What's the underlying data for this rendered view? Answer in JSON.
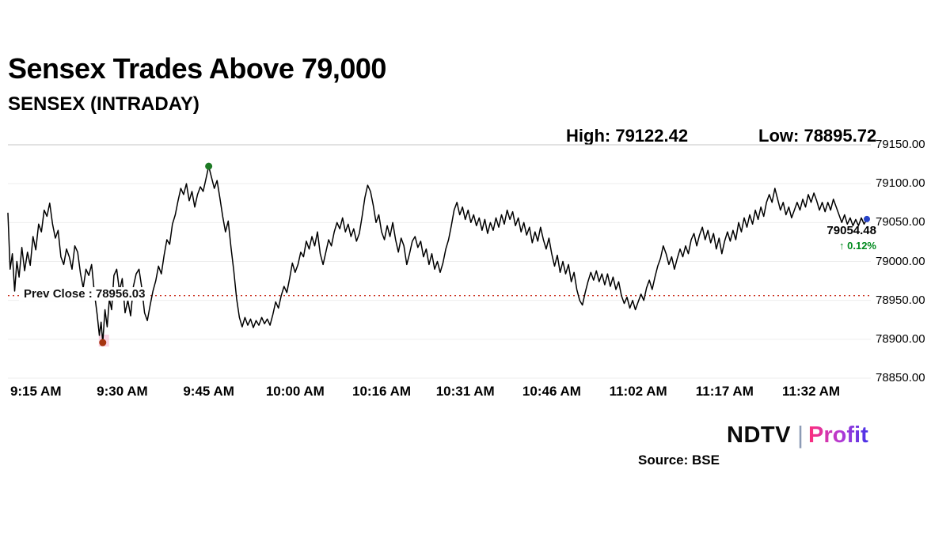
{
  "header": {
    "title": "Sensex Trades Above 79,000",
    "subtitle": "SENSEX (INTRADAY)",
    "high_label": "High:",
    "high_value": "79122.42",
    "low_label": "Low:",
    "low_value": "78895.72"
  },
  "footer": {
    "source": "Source: BSE",
    "logo_ndtv": "NDTV",
    "logo_sep": "|",
    "logo_profit": "Profit"
  },
  "chart_data": {
    "type": "line",
    "title": "SENSEX (INTRADAY)",
    "xlabel": "",
    "ylabel": "",
    "ylim": [
      78850,
      79150
    ],
    "t_range": [
      0,
      154
    ],
    "grid": "horizontal-light",
    "legend": "none",
    "y_ticks": [
      {
        "value": 79150,
        "label": "79150.00"
      },
      {
        "value": 79100,
        "label": "79100.00"
      },
      {
        "value": 79050,
        "label": "79050.00"
      },
      {
        "value": 79000,
        "label": "79000.00"
      },
      {
        "value": 78950,
        "label": "78950.00"
      },
      {
        "value": 78900,
        "label": "78900.00"
      },
      {
        "value": 78850,
        "label": "78850.00"
      }
    ],
    "x_ticks": [
      {
        "t": 5,
        "label": "9:15 AM"
      },
      {
        "t": 20.5,
        "label": "9:30 AM"
      },
      {
        "t": 36,
        "label": "9:45 AM"
      },
      {
        "t": 51.5,
        "label": "10:00 AM"
      },
      {
        "t": 67,
        "label": "10:16 AM"
      },
      {
        "t": 82,
        "label": "10:31 AM"
      },
      {
        "t": 97.5,
        "label": "10:46 AM"
      },
      {
        "t": 113,
        "label": "11:02 AM"
      },
      {
        "t": 128.5,
        "label": "11:17 AM"
      },
      {
        "t": 144,
        "label": "11:32 AM"
      }
    ],
    "prev_close": {
      "value": 78956.03,
      "text": "Prev Close : 78956.03"
    },
    "high": {
      "t": 36,
      "value": 79122.42
    },
    "low": {
      "t": 17,
      "value": 78895.72
    },
    "last": {
      "t": 154,
      "value": 79054.48,
      "price_label": "79054.48",
      "change_label": "↑ 0.12%"
    },
    "colors": {
      "line": "#000000",
      "prev_close_line": "#cc3322",
      "high_dot": "#1d7a24",
      "low_dot": "#a63510",
      "low_halo": "#f6bcd4",
      "last_dot": "#2743c7",
      "change_text": "#008a1e",
      "grid_top": "#c4c4c4",
      "grid": "#ededed"
    },
    "points": [
      [
        0,
        79062
      ],
      [
        0.4,
        78990
      ],
      [
        0.8,
        79010
      ],
      [
        1.2,
        78962
      ],
      [
        1.6,
        79000
      ],
      [
        2,
        78980
      ],
      [
        2.5,
        79018
      ],
      [
        3,
        78988
      ],
      [
        3.5,
        79012
      ],
      [
        4,
        78995
      ],
      [
        4.5,
        79032
      ],
      [
        5,
        79015
      ],
      [
        5.5,
        79048
      ],
      [
        6,
        79038
      ],
      [
        6.5,
        79066
      ],
      [
        7,
        79058
      ],
      [
        7.5,
        79075
      ],
      [
        8,
        79048
      ],
      [
        8.5,
        79030
      ],
      [
        9,
        79040
      ],
      [
        9.5,
        79006
      ],
      [
        10,
        78996
      ],
      [
        10.5,
        79016
      ],
      [
        11,
        79006
      ],
      [
        11.5,
        78990
      ],
      [
        12,
        79020
      ],
      [
        12.5,
        79012
      ],
      [
        13,
        78985
      ],
      [
        13.5,
        78966
      ],
      [
        14,
        78990
      ],
      [
        14.5,
        78982
      ],
      [
        15,
        78996
      ],
      [
        15.5,
        78960
      ],
      [
        16,
        78932
      ],
      [
        16.4,
        78905
      ],
      [
        16.7,
        78922
      ],
      [
        17,
        78895.72
      ],
      [
        17.4,
        78938
      ],
      [
        17.8,
        78916
      ],
      [
        18.2,
        78952
      ],
      [
        18.6,
        78938
      ],
      [
        19,
        78982
      ],
      [
        19.5,
        78990
      ],
      [
        20,
        78962
      ],
      [
        20.5,
        78978
      ],
      [
        21,
        78934
      ],
      [
        21.5,
        78950
      ],
      [
        22,
        78930
      ],
      [
        22.5,
        78968
      ],
      [
        23,
        78984
      ],
      [
        23.5,
        78990
      ],
      [
        24,
        78966
      ],
      [
        24.5,
        78934
      ],
      [
        25,
        78924
      ],
      [
        25.5,
        78944
      ],
      [
        26,
        78962
      ],
      [
        26.5,
        78975
      ],
      [
        27,
        78994
      ],
      [
        27.5,
        78984
      ],
      [
        28,
        79008
      ],
      [
        28.5,
        79028
      ],
      [
        29,
        79022
      ],
      [
        29.5,
        79048
      ],
      [
        30,
        79060
      ],
      [
        30.5,
        79078
      ],
      [
        31,
        79094
      ],
      [
        31.5,
        79086
      ],
      [
        32,
        79100
      ],
      [
        32.5,
        79078
      ],
      [
        33,
        79090
      ],
      [
        33.5,
        79070
      ],
      [
        34,
        79086
      ],
      [
        34.5,
        79096
      ],
      [
        35,
        79090
      ],
      [
        35.5,
        79106
      ],
      [
        36,
        79122.42
      ],
      [
        36.5,
        79108
      ],
      [
        37,
        79094
      ],
      [
        37.5,
        79104
      ],
      [
        38,
        79082
      ],
      [
        38.5,
        79058
      ],
      [
        39,
        79038
      ],
      [
        39.5,
        79052
      ],
      [
        40,
        79018
      ],
      [
        40.5,
        78988
      ],
      [
        41,
        78952
      ],
      [
        41.5,
        78928
      ],
      [
        42,
        78916
      ],
      [
        42.5,
        78928
      ],
      [
        43,
        78918
      ],
      [
        43.5,
        78926
      ],
      [
        44,
        78915
      ],
      [
        44.5,
        78924
      ],
      [
        45,
        78918
      ],
      [
        45.5,
        78928
      ],
      [
        46,
        78920
      ],
      [
        46.5,
        78926
      ],
      [
        47,
        78918
      ],
      [
        47.5,
        78932
      ],
      [
        48,
        78948
      ],
      [
        48.5,
        78940
      ],
      [
        49,
        78956
      ],
      [
        49.5,
        78968
      ],
      [
        50,
        78960
      ],
      [
        50.5,
        78978
      ],
      [
        51,
        78998
      ],
      [
        51.5,
        78986
      ],
      [
        52,
        78996
      ],
      [
        52.5,
        79012
      ],
      [
        53,
        79006
      ],
      [
        53.5,
        79026
      ],
      [
        54,
        79016
      ],
      [
        54.5,
        79032
      ],
      [
        55,
        79020
      ],
      [
        55.5,
        79038
      ],
      [
        56,
        79010
      ],
      [
        56.5,
        78996
      ],
      [
        57,
        79012
      ],
      [
        57.5,
        79028
      ],
      [
        58,
        79020
      ],
      [
        58.5,
        79038
      ],
      [
        59,
        79050
      ],
      [
        59.5,
        79042
      ],
      [
        60,
        79056
      ],
      [
        60.5,
        79038
      ],
      [
        61,
        79048
      ],
      [
        61.5,
        79032
      ],
      [
        62,
        79042
      ],
      [
        62.5,
        79026
      ],
      [
        63,
        79036
      ],
      [
        63.5,
        79058
      ],
      [
        64,
        79082
      ],
      [
        64.5,
        79098
      ],
      [
        65,
        79090
      ],
      [
        65.5,
        79072
      ],
      [
        66,
        79050
      ],
      [
        66.5,
        79060
      ],
      [
        67,
        79038
      ],
      [
        67.5,
        79028
      ],
      [
        68,
        79046
      ],
      [
        68.5,
        79032
      ],
      [
        69,
        79050
      ],
      [
        69.5,
        79028
      ],
      [
        70,
        79012
      ],
      [
        70.5,
        79030
      ],
      [
        71,
        79020
      ],
      [
        71.5,
        78996
      ],
      [
        72,
        79010
      ],
      [
        72.5,
        79026
      ],
      [
        73,
        79032
      ],
      [
        73.5,
        79018
      ],
      [
        74,
        79026
      ],
      [
        74.5,
        79006
      ],
      [
        75,
        79016
      ],
      [
        75.5,
        78996
      ],
      [
        76,
        79010
      ],
      [
        76.5,
        78990
      ],
      [
        77,
        79000
      ],
      [
        77.5,
        78986
      ],
      [
        78,
        78998
      ],
      [
        78.5,
        79016
      ],
      [
        79,
        79028
      ],
      [
        79.5,
        79046
      ],
      [
        80,
        79066
      ],
      [
        80.5,
        79076
      ],
      [
        81,
        79060
      ],
      [
        81.5,
        79070
      ],
      [
        82,
        79054
      ],
      [
        82.5,
        79066
      ],
      [
        83,
        79050
      ],
      [
        83.5,
        79060
      ],
      [
        84,
        79046
      ],
      [
        84.5,
        79056
      ],
      [
        85,
        79040
      ],
      [
        85.5,
        79054
      ],
      [
        86,
        79036
      ],
      [
        86.5,
        79050
      ],
      [
        87,
        79040
      ],
      [
        87.5,
        79056
      ],
      [
        88,
        79044
      ],
      [
        88.5,
        79060
      ],
      [
        89,
        79048
      ],
      [
        89.5,
        79066
      ],
      [
        90,
        79054
      ],
      [
        90.5,
        79064
      ],
      [
        91,
        79046
      ],
      [
        91.5,
        79056
      ],
      [
        92,
        79038
      ],
      [
        92.5,
        79050
      ],
      [
        93,
        79034
      ],
      [
        93.5,
        79044
      ],
      [
        94,
        79024
      ],
      [
        94.5,
        79038
      ],
      [
        95,
        79026
      ],
      [
        95.5,
        79044
      ],
      [
        96,
        79028
      ],
      [
        96.5,
        79016
      ],
      [
        97,
        79030
      ],
      [
        97.5,
        79010
      ],
      [
        98,
        78994
      ],
      [
        98.5,
        79008
      ],
      [
        99,
        78986
      ],
      [
        99.5,
        79000
      ],
      [
        100,
        78984
      ],
      [
        100.5,
        78996
      ],
      [
        101,
        78974
      ],
      [
        101.5,
        78986
      ],
      [
        102,
        78964
      ],
      [
        102.5,
        78950
      ],
      [
        103,
        78944
      ],
      [
        103.5,
        78960
      ],
      [
        104,
        78974
      ],
      [
        104.5,
        78986
      ],
      [
        105,
        78976
      ],
      [
        105.5,
        78988
      ],
      [
        106,
        78974
      ],
      [
        106.5,
        78984
      ],
      [
        107,
        78970
      ],
      [
        107.5,
        78984
      ],
      [
        108,
        78968
      ],
      [
        108.5,
        78980
      ],
      [
        109,
        78964
      ],
      [
        109.5,
        78974
      ],
      [
        110,
        78956
      ],
      [
        110.5,
        78946
      ],
      [
        111,
        78954
      ],
      [
        111.5,
        78940
      ],
      [
        112,
        78950
      ],
      [
        112.5,
        78938
      ],
      [
        113,
        78948
      ],
      [
        113.5,
        78958
      ],
      [
        114,
        78950
      ],
      [
        114.5,
        78966
      ],
      [
        115,
        78976
      ],
      [
        115.5,
        78964
      ],
      [
        116,
        78980
      ],
      [
        116.5,
        78994
      ],
      [
        117,
        79004
      ],
      [
        117.5,
        79020
      ],
      [
        118,
        79010
      ],
      [
        118.5,
        78996
      ],
      [
        119,
        79006
      ],
      [
        119.5,
        78990
      ],
      [
        120,
        79004
      ],
      [
        120.5,
        79016
      ],
      [
        121,
        79006
      ],
      [
        121.5,
        79020
      ],
      [
        122,
        79010
      ],
      [
        122.5,
        79028
      ],
      [
        123,
        79036
      ],
      [
        123.5,
        79020
      ],
      [
        124,
        79034
      ],
      [
        124.5,
        79044
      ],
      [
        125,
        79028
      ],
      [
        125.5,
        79040
      ],
      [
        126,
        79024
      ],
      [
        126.5,
        79036
      ],
      [
        127,
        79016
      ],
      [
        127.5,
        79030
      ],
      [
        128,
        79010
      ],
      [
        128.5,
        79026
      ],
      [
        129,
        79038
      ],
      [
        129.5,
        79026
      ],
      [
        130,
        79040
      ],
      [
        130.5,
        79028
      ],
      [
        131,
        79050
      ],
      [
        131.5,
        79038
      ],
      [
        132,
        79056
      ],
      [
        132.5,
        79044
      ],
      [
        133,
        79060
      ],
      [
        133.5,
        79048
      ],
      [
        134,
        79066
      ],
      [
        134.5,
        79054
      ],
      [
        135,
        79070
      ],
      [
        135.5,
        79058
      ],
      [
        136,
        79076
      ],
      [
        136.5,
        79086
      ],
      [
        137,
        79076
      ],
      [
        137.5,
        79094
      ],
      [
        138,
        79080
      ],
      [
        138.5,
        79066
      ],
      [
        139,
        79076
      ],
      [
        139.5,
        79060
      ],
      [
        140,
        79070
      ],
      [
        140.5,
        79056
      ],
      [
        141,
        79066
      ],
      [
        141.5,
        79076
      ],
      [
        142,
        79066
      ],
      [
        142.5,
        79080
      ],
      [
        143,
        79070
      ],
      [
        143.5,
        79086
      ],
      [
        144,
        79076
      ],
      [
        144.5,
        79088
      ],
      [
        145,
        79078
      ],
      [
        145.5,
        79066
      ],
      [
        146,
        79076
      ],
      [
        146.5,
        79064
      ],
      [
        147,
        79076
      ],
      [
        147.5,
        79066
      ],
      [
        148,
        79080
      ],
      [
        148.5,
        79070
      ],
      [
        149,
        79060
      ],
      [
        149.5,
        79050
      ],
      [
        150,
        79060
      ],
      [
        150.5,
        79048
      ],
      [
        151,
        79056
      ],
      [
        151.5,
        79046
      ],
      [
        152,
        79054
      ],
      [
        152.5,
        79046
      ],
      [
        153,
        79056
      ],
      [
        153.5,
        79048
      ],
      [
        154,
        79054.48
      ]
    ]
  }
}
